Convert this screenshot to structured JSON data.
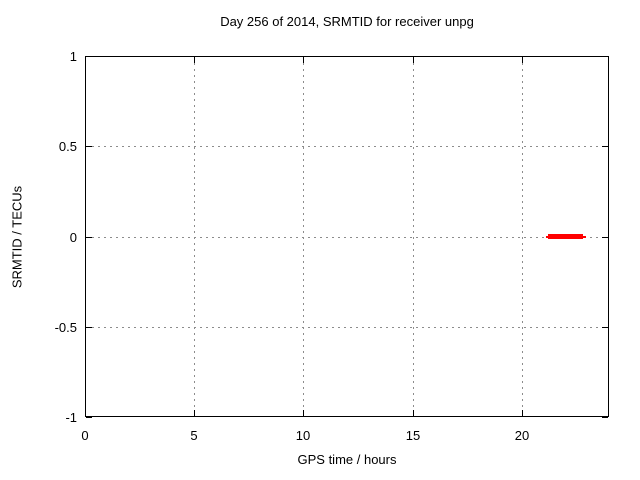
{
  "window": {
    "background": "#ffffff"
  },
  "chart_data": {
    "type": "line",
    "title": "Day 256 of 2014, SRMTID for receiver unpg",
    "xlabel": "GPS time / hours",
    "ylabel": "SRMTID / TECUs",
    "xlim": [
      0,
      24
    ],
    "ylim": [
      -1,
      1
    ],
    "xticks": [
      0,
      5,
      10,
      15,
      20
    ],
    "xtick_labels": [
      "0",
      "5",
      "10",
      "15",
      "20"
    ],
    "yticks": [
      1,
      0.5,
      0,
      -0.5,
      -1
    ],
    "ytick_labels": [
      "1",
      "0.5",
      "0",
      "-0.5",
      "-1"
    ],
    "grid": true,
    "legend": "none",
    "series": [
      {
        "name": "SRMTID",
        "color": "#ff0000",
        "style": "points",
        "description": "dense cluster of points at y = 0 between x = 21.1 and x = 22.9 hours",
        "segments": [
          {
            "x_start": 21.1,
            "x_end": 22.95,
            "y": 0,
            "weight": "thin"
          },
          {
            "x_start": 21.2,
            "x_end": 22.8,
            "y": 0,
            "weight": "thick"
          }
        ]
      }
    ]
  },
  "colors": {
    "background": "#ffffff",
    "border": "#000000",
    "grid": "#8c8c8c",
    "text": "#000000",
    "series": "#ff0000"
  }
}
